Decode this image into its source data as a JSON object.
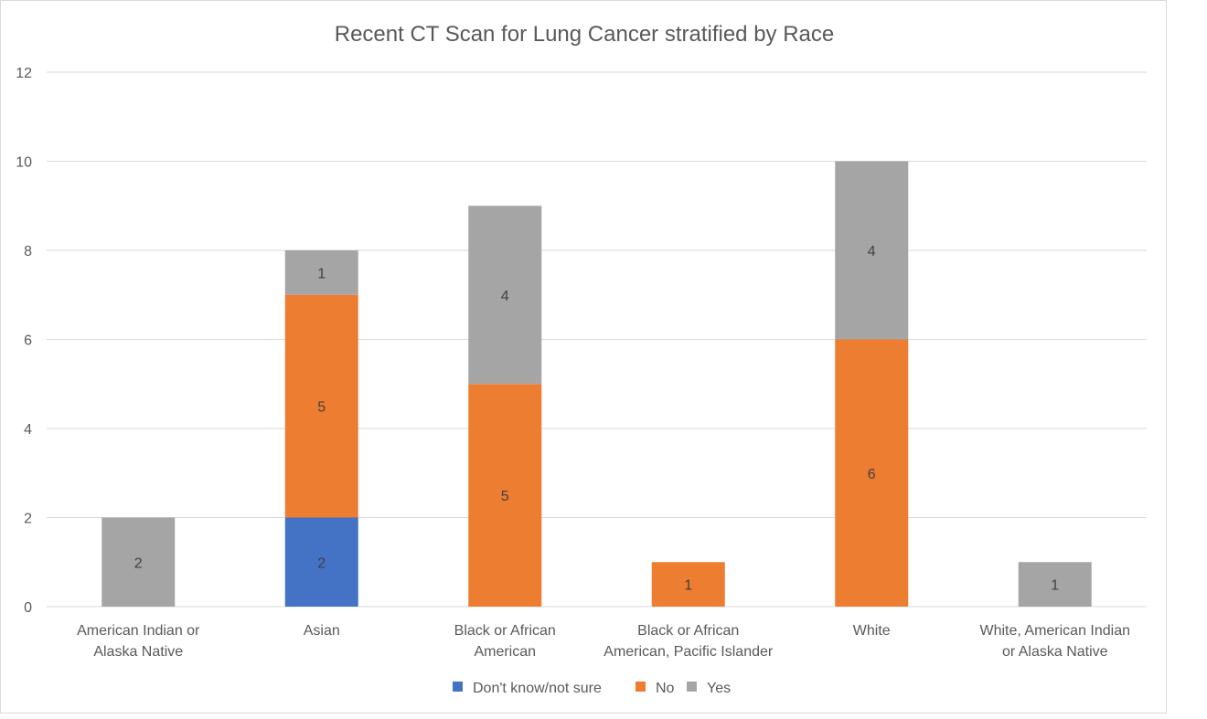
{
  "chart_data": {
    "type": "bar",
    "stacked": true,
    "title": "Recent CT Scan for Lung Cancer stratified by Race",
    "xlabel": "",
    "ylabel": "",
    "ylim": [
      0,
      12
    ],
    "yticks": [
      "0",
      "2",
      "4",
      "6",
      "8",
      "10",
      "12"
    ],
    "grid": true,
    "legend_position": "bottom",
    "categories": [
      [
        "American Indian or",
        "Alaska Native"
      ],
      [
        "Asian"
      ],
      [
        "Black or African",
        "American"
      ],
      [
        "Black or African",
        "American, Pacific Islander"
      ],
      [
        "White"
      ],
      [
        "White, American Indian",
        "or Alaska Native"
      ]
    ],
    "series": [
      {
        "name": "Don't know/not sure",
        "color": "#4472C4",
        "values": [
          0,
          2,
          0,
          0,
          0,
          0
        ]
      },
      {
        "name": "No",
        "color": "#ED7D31",
        "values": [
          0,
          5,
          5,
          1,
          6,
          0
        ]
      },
      {
        "name": "Yes",
        "color": "#A5A5A5",
        "values": [
          2,
          1,
          4,
          0,
          4,
          1
        ]
      }
    ]
  },
  "style": {
    "gridline_color": "#d9d9d9",
    "axis_text_color": "#595959",
    "title_color": "#595959",
    "data_label_color": "#404040"
  }
}
